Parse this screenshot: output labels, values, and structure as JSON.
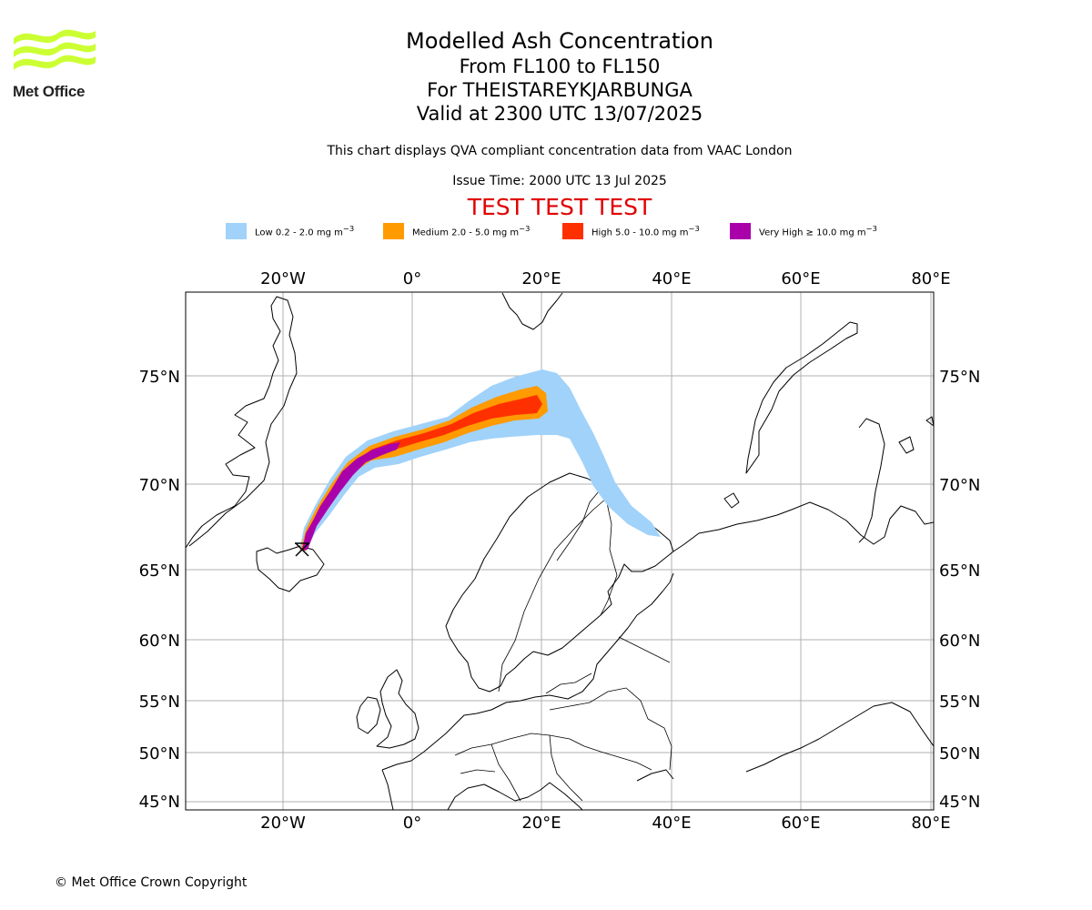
{
  "brand": {
    "name": "Met Office",
    "logo_icon": "met-office-wave-logo",
    "logo_color": "#ccff33"
  },
  "header": {
    "title": "Modelled Ash Concentration",
    "flight_levels": "From FL100 to FL150",
    "volcano": "For THEISTAREYKJARBUNGA",
    "valid_time": "Valid at 2300 UTC 13/07/2025",
    "compliance_note": "This chart displays QVA compliant concentration data from VAAC London",
    "issue_time": "Issue Time: 2000 UTC 13 Jul 2025",
    "test_banner": "TEST TEST TEST",
    "test_banner_color": "#e00000"
  },
  "legend": [
    {
      "label": "Low 0.2 - 2.0 mg m",
      "unit_exp": "−3",
      "color": "#a0d2fa"
    },
    {
      "label": "Medium 2.0 - 5.0 mg m",
      "unit_exp": "−3",
      "color": "#ff9a00"
    },
    {
      "label": "High 5.0 - 10.0 mg m",
      "unit_exp": "−3",
      "color": "#ff3000"
    },
    {
      "label": "Very High ≥ 10.0 mg m",
      "unit_exp": "−3",
      "color": "#aa00aa"
    }
  ],
  "map": {
    "projection": "polar-stereographic",
    "lon_ticks": [
      "20°W",
      "0°",
      "20°E",
      "40°E",
      "60°E",
      "80°E"
    ],
    "lat_ticks": [
      "75°N",
      "70°N",
      "65°N",
      "60°N",
      "55°N",
      "50°N",
      "45°N"
    ],
    "gridlines": true,
    "source_marker": "volcano-source-marker"
  },
  "footer": {
    "copyright": "© Met Office Crown Copyright"
  }
}
